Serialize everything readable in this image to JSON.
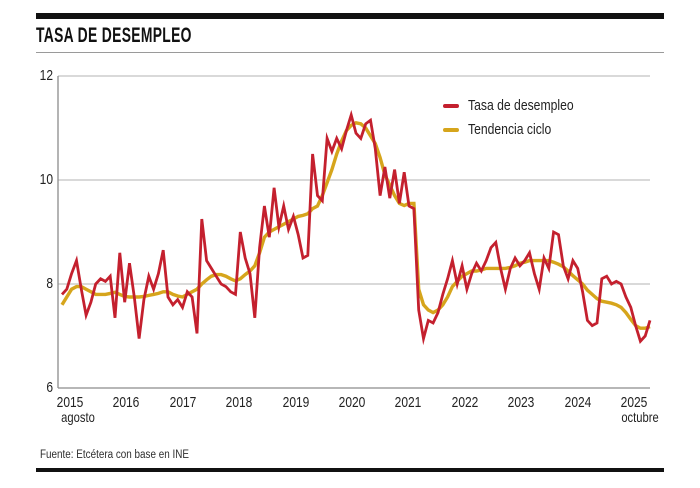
{
  "header": {
    "title": "TASA DE DESEMPLEO"
  },
  "legend": {
    "items": [
      {
        "label": "Tasa de desempleo",
        "color": "#c4202e"
      },
      {
        "label": "Tendencia ciclo",
        "color": "#d6a51c"
      }
    ]
  },
  "axes": {
    "y_ticks": [
      "12",
      "10",
      "8",
      "6"
    ],
    "x_ticks": [
      "2015",
      "2016",
      "2017",
      "2018",
      "2019",
      "2020",
      "2021",
      "2022",
      "2023",
      "2024",
      "2025"
    ],
    "x_start_sublabel": "agosto",
    "x_end_sublabel": "octubre"
  },
  "footer": {
    "source": "Fuente: Etcétera con base en INE"
  },
  "colors": {
    "tasa": "#c4202e",
    "tendencia": "#d6a51c",
    "gridline": "#b3b3b3",
    "axis": "#8c8c8c"
  },
  "chart_data": {
    "type": "line",
    "title": "TASA DE DESEMPLEO",
    "x_unit": "month",
    "x_start": "agosto 2015",
    "x_end": "octubre 2025",
    "ylim": [
      6,
      12
    ],
    "y_gridlines": [
      8,
      10,
      12
    ],
    "legend_position": "top-right",
    "series": [
      {
        "name": "Tasa de desempleo",
        "color": "#c4202e",
        "values": [
          7.8,
          7.9,
          8.2,
          8.45,
          7.9,
          7.4,
          7.65,
          8.0,
          8.1,
          8.05,
          8.15,
          7.35,
          8.6,
          7.65,
          8.4,
          7.75,
          6.95,
          7.7,
          8.15,
          7.9,
          8.2,
          8.65,
          7.75,
          7.6,
          7.7,
          7.55,
          7.85,
          7.75,
          7.05,
          9.25,
          8.45,
          8.3,
          8.15,
          8.0,
          7.95,
          7.85,
          7.8,
          9.0,
          8.5,
          8.2,
          7.35,
          8.7,
          9.5,
          8.9,
          9.85,
          9.1,
          9.5,
          9.05,
          9.3,
          8.95,
          8.5,
          8.55,
          10.5,
          9.7,
          9.6,
          10.8,
          10.55,
          10.8,
          10.6,
          10.95,
          11.25,
          10.9,
          10.8,
          11.08,
          11.15,
          10.6,
          9.7,
          10.25,
          9.65,
          10.2,
          9.55,
          10.15,
          9.5,
          9.45,
          7.5,
          6.95,
          7.3,
          7.25,
          7.45,
          7.8,
          8.1,
          8.45,
          8.0,
          8.35,
          7.9,
          8.2,
          8.4,
          8.25,
          8.45,
          8.7,
          8.8,
          8.3,
          7.9,
          8.3,
          8.5,
          8.35,
          8.45,
          8.6,
          8.2,
          7.9,
          8.5,
          8.3,
          9.0,
          8.95,
          8.35,
          8.1,
          8.45,
          8.3,
          7.85,
          7.3,
          7.2,
          7.25,
          8.1,
          8.15,
          8.0,
          8.05,
          8.0,
          7.75,
          7.55,
          7.2,
          6.9,
          7.0,
          7.3
        ]
      },
      {
        "name": "Tendencia ciclo",
        "color": "#d6a51c",
        "values": [
          7.6,
          7.75,
          7.9,
          7.95,
          7.95,
          7.9,
          7.85,
          7.8,
          7.8,
          7.8,
          7.82,
          7.84,
          7.8,
          7.76,
          7.75,
          7.75,
          7.75,
          7.76,
          7.78,
          7.8,
          7.82,
          7.85,
          7.85,
          7.8,
          7.77,
          7.75,
          7.8,
          7.85,
          7.9,
          8.0,
          8.08,
          8.15,
          8.18,
          8.18,
          8.15,
          8.1,
          8.06,
          8.1,
          8.18,
          8.25,
          8.35,
          8.6,
          8.9,
          9.0,
          9.05,
          9.1,
          9.15,
          9.2,
          9.25,
          9.3,
          9.32,
          9.35,
          9.45,
          9.5,
          9.7,
          9.95,
          10.2,
          10.5,
          10.75,
          10.95,
          11.05,
          11.1,
          11.08,
          11.0,
          10.85,
          10.7,
          10.43,
          10.1,
          9.9,
          9.7,
          9.55,
          9.51,
          9.55,
          9.55,
          7.9,
          7.6,
          7.5,
          7.45,
          7.5,
          7.6,
          7.75,
          7.95,
          8.05,
          8.15,
          8.2,
          8.25,
          8.25,
          8.27,
          8.3,
          8.3,
          8.3,
          8.3,
          8.3,
          8.32,
          8.35,
          8.4,
          8.42,
          8.45,
          8.45,
          8.45,
          8.45,
          8.45,
          8.42,
          8.38,
          8.33,
          8.25,
          8.16,
          8.08,
          8.0,
          7.88,
          7.8,
          7.72,
          7.67,
          7.65,
          7.63,
          7.6,
          7.55,
          7.45,
          7.32,
          7.2,
          7.15,
          7.15,
          7.18
        ]
      }
    ]
  }
}
